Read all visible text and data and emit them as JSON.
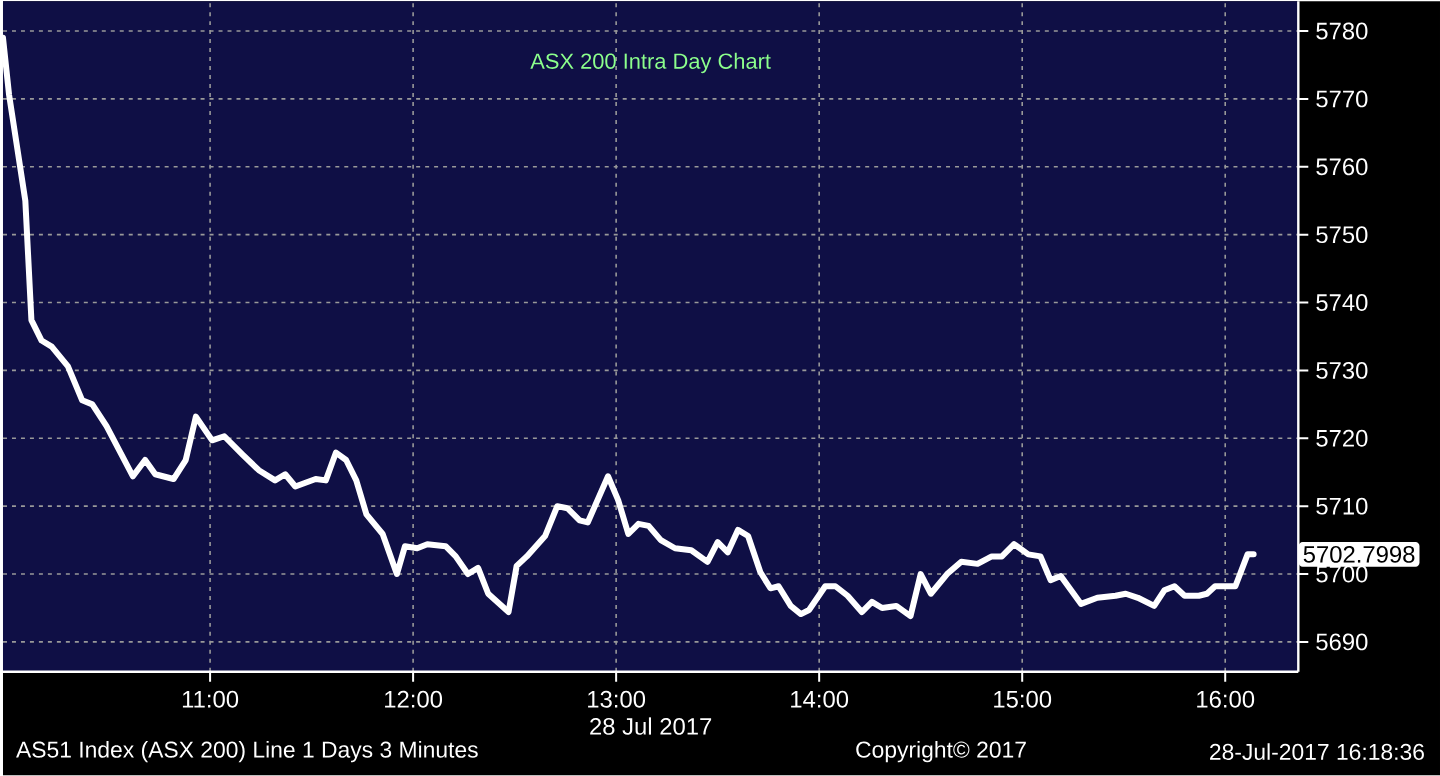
{
  "chart_data": {
    "type": "line",
    "title": "ASX 200 Intra Day Chart",
    "xlabel": "28 Jul 2017",
    "xlim": [
      9.98,
      16.36
    ],
    "ylim": [
      5685.6,
      5784.4
    ],
    "xticks": [
      {
        "value": 11,
        "label": "11:00"
      },
      {
        "value": 12,
        "label": "12:00"
      },
      {
        "value": 13,
        "label": "13:00"
      },
      {
        "value": 14,
        "label": "14:00"
      },
      {
        "value": 15,
        "label": "15:00"
      },
      {
        "value": 16,
        "label": "16:00"
      }
    ],
    "yticks": [
      5690,
      5700,
      5710,
      5720,
      5730,
      5740,
      5750,
      5760,
      5770,
      5780
    ],
    "grid": true,
    "series": [
      {
        "color": "#ffffff",
        "x": [
          9.98,
          10.01,
          10.09,
          10.12,
          10.17,
          10.22,
          10.3,
          10.37,
          10.42,
          10.49,
          10.62,
          10.68,
          10.73,
          10.82,
          10.88,
          10.93,
          11.01,
          11.07,
          11.16,
          11.24,
          11.32,
          11.37,
          11.42,
          11.52,
          11.57,
          11.62,
          11.67,
          11.72,
          11.77,
          11.85,
          11.92,
          11.96,
          12.02,
          12.07,
          12.16,
          12.21,
          12.27,
          12.32,
          12.37,
          12.47,
          12.51,
          12.56,
          12.65,
          12.71,
          12.76,
          12.82,
          12.86,
          12.96,
          13.01,
          13.06,
          13.11,
          13.16,
          13.22,
          13.29,
          13.37,
          13.45,
          13.5,
          13.55,
          13.6,
          13.65,
          13.71,
          13.76,
          13.8,
          13.86,
          13.91,
          13.95,
          14.03,
          14.08,
          14.14,
          14.21,
          14.26,
          14.31,
          14.38,
          14.45,
          14.5,
          14.55,
          14.63,
          14.7,
          14.78,
          14.85,
          14.9,
          14.96,
          15.03,
          15.09,
          15.14,
          15.19,
          15.29,
          15.37,
          15.46,
          15.51,
          15.57,
          15.65,
          15.7,
          15.75,
          15.8,
          15.87,
          15.91,
          15.95,
          16.05,
          16.11,
          16.14
        ],
        "values": [
          5779,
          5770.6,
          5755,
          5737.4,
          5734.4,
          5733.5,
          5730.6,
          5725.6,
          5725,
          5721.8,
          5714.4,
          5716.8,
          5714.7,
          5714,
          5716.8,
          5723.2,
          5719.7,
          5720.3,
          5717.6,
          5715.3,
          5713.8,
          5714.7,
          5712.9,
          5714,
          5713.8,
          5717.9,
          5716.8,
          5713.8,
          5708.8,
          5705.9,
          5700,
          5704.1,
          5703.8,
          5704.4,
          5704.1,
          5702.6,
          5700,
          5700.9,
          5697.1,
          5694.4,
          5701.2,
          5702.6,
          5705.6,
          5710,
          5709.7,
          5707.9,
          5707.6,
          5714.4,
          5710.9,
          5705.9,
          5707.4,
          5707.1,
          5705,
          5703.8,
          5703.5,
          5701.8,
          5704.7,
          5703.2,
          5706.5,
          5705.6,
          5700.3,
          5697.9,
          5698.2,
          5695.3,
          5694.1,
          5694.7,
          5698.2,
          5698.2,
          5696.8,
          5694.4,
          5695.9,
          5695,
          5695.3,
          5693.8,
          5700,
          5697.1,
          5700,
          5701.8,
          5701.5,
          5702.6,
          5702.6,
          5704.4,
          5702.9,
          5702.6,
          5699.1,
          5699.7,
          5695.6,
          5696.5,
          5696.8,
          5697.1,
          5696.5,
          5695.3,
          5697.6,
          5698.2,
          5696.8,
          5696.8,
          5697.1,
          5698.2,
          5698.2,
          5702.9,
          5702.9
        ]
      }
    ],
    "annotations": [
      "5702.7998",
      "AS51 Index (ASX 200) Line 1 Days 3 Minutes",
      "Copyright© 2017",
      "28-Jul-2017 16:18:36"
    ]
  }
}
